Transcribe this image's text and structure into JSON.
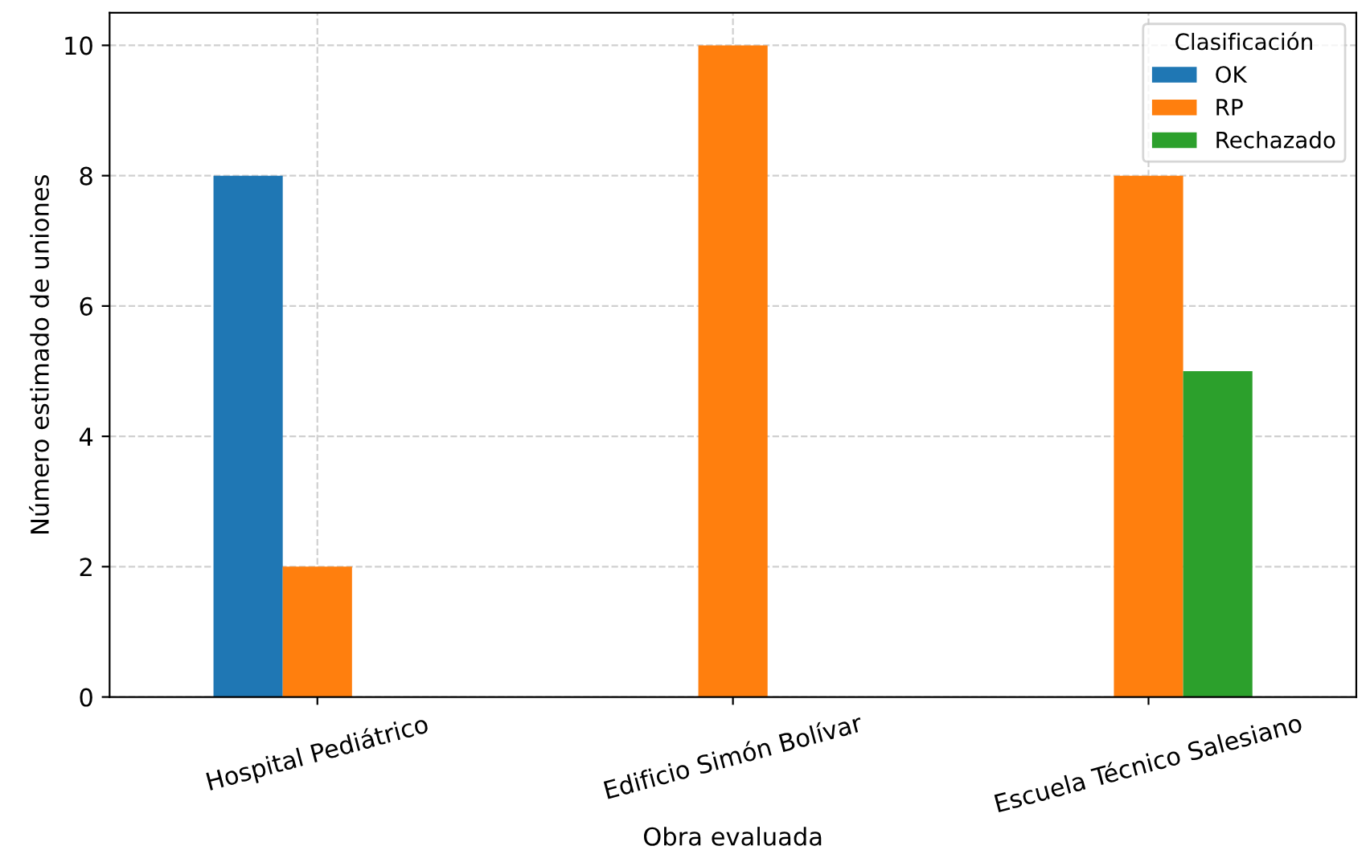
{
  "chart_data": {
    "type": "bar",
    "xlabel": "Obra evaluada",
    "ylabel": "Número estimado de uniones",
    "legend_title": "Clasificación",
    "categories": [
      "Hospital Pediátrico",
      "Edificio Simón Bolívar",
      "Escuela Técnico Salesiano"
    ],
    "series": [
      {
        "name": "OK",
        "color": "#1f77b4",
        "values": [
          8,
          null,
          null
        ]
      },
      {
        "name": "RP",
        "color": "#ff7f0e",
        "values": [
          2,
          10,
          8
        ]
      },
      {
        "name": "Rechazado",
        "color": "#2ca02c",
        "values": [
          null,
          null,
          5
        ]
      }
    ],
    "ylim": [
      0,
      10.5
    ],
    "yticks": [
      0,
      2,
      4,
      6,
      8,
      10
    ],
    "grid": true,
    "legend": "top right"
  }
}
